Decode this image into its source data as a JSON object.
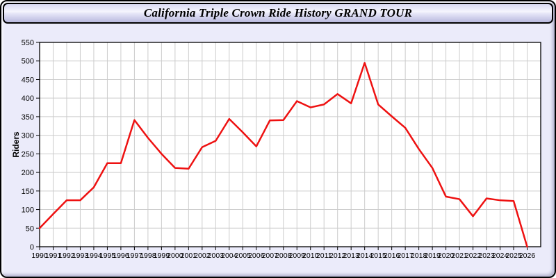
{
  "window": {
    "title": "California Triple Crown Ride History GRAND TOUR"
  },
  "colors": {
    "page_background": "#ebebfa",
    "plot_background": "#ffffff",
    "grid": "#cccccc",
    "axis_border": "#000000",
    "line": "#ee1111",
    "tick_label": "#000000",
    "title_gradient_top": "#d9d9f2",
    "title_gradient_bottom": "#b9b9de"
  },
  "chart_data": {
    "type": "line",
    "title": "California Triple Crown Ride History GRAND TOUR",
    "xlabel": "",
    "ylabel": "Riders",
    "x": [
      1990,
      1991,
      1992,
      1993,
      1994,
      1995,
      1996,
      1997,
      1998,
      1999,
      2000,
      2001,
      2002,
      2003,
      2004,
      2005,
      2006,
      2007,
      2008,
      2009,
      2010,
      2011,
      2012,
      2013,
      2014,
      2015,
      2016,
      2017,
      2018,
      2019,
      2020,
      2021,
      2022,
      2023,
      2024,
      2025,
      2026
    ],
    "series": [
      {
        "name": "Riders",
        "values": [
          50,
          88,
          125,
          125,
          160,
          225,
          225,
          341,
          293,
          250,
          212,
          210,
          268,
          285,
          344,
          308,
          270,
          340,
          341,
          392,
          375,
          383,
          411,
          386,
          495,
          383,
          351,
          320,
          263,
          212,
          135,
          128,
          82,
          130,
          125,
          123,
          0
        ]
      }
    ],
    "ylim": [
      0,
      550
    ],
    "ytick_step": 50,
    "grid": true,
    "legend_position": "none"
  }
}
